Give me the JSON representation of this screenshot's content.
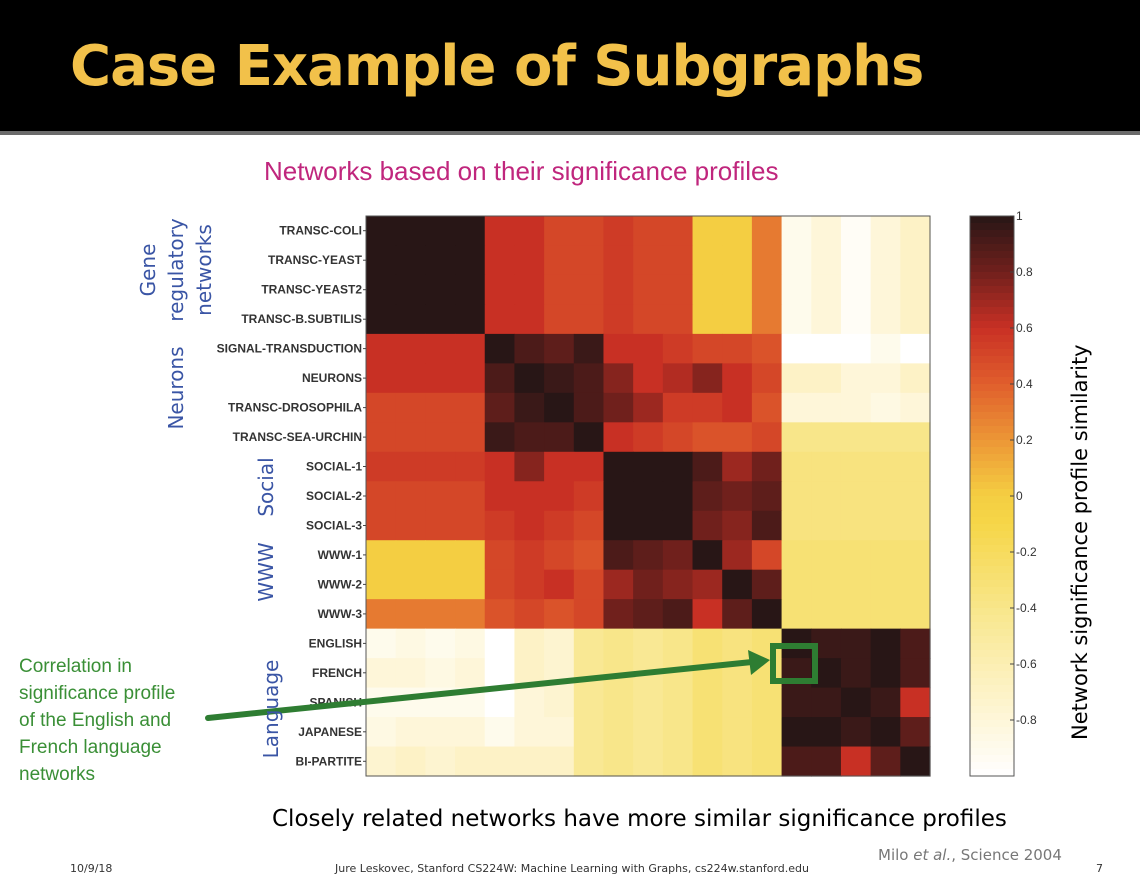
{
  "slide": {
    "title": "Case Example of Subgraphs",
    "subtitle": "Networks based on their significance profiles",
    "caption": "Closely related networks have more similar significance profiles",
    "citation_prefix": "Milo ",
    "citation_italic": "et al.",
    "citation_suffix": ", Science 2004",
    "footer_date": "10/9/18",
    "footer_center": "Jure Leskovec, Stanford CS224W: Machine Learning with Graphs, cs224w.stanford.edu",
    "page_number": "7"
  },
  "groups": {
    "gene_line1": "Gene",
    "gene_line2": "regulatory",
    "gene_line3": "networks",
    "neurons": "Neurons",
    "social": "Social",
    "www": "WWW",
    "language": "Language"
  },
  "callout": {
    "lines": [
      "Correlation in",
      "significance profile",
      "of the English and",
      "French language",
      "networks"
    ],
    "color": "#3a8f36"
  },
  "colors": {
    "title": "#f2c14a",
    "subtitle": "#c0267d",
    "group_labels": "#3a55a5",
    "highlight": "#2e7d32"
  },
  "chart_data": {
    "type": "heatmap",
    "title": "",
    "colorbar_label": "Network significance profile similarity",
    "colorbar_range": [
      -1,
      1
    ],
    "colorbar_ticks": [
      "1",
      "0.8",
      "0.6",
      "0.4",
      "0.2",
      "0",
      "-0.2",
      "-0.4",
      "-0.6",
      "-0.8"
    ],
    "colorbar_tick_values": [
      1,
      0.8,
      0.6,
      0.4,
      0.2,
      0,
      -0.2,
      -0.4,
      -0.6,
      -0.8
    ],
    "rows": [
      "TRANSC-COLI",
      "TRANSC-YEAST",
      "TRANSC-YEAST2",
      "TRANSC-B.SUBTILIS",
      "SIGNAL-TRANSDUCTION",
      "NEURONS",
      "TRANSC-DROSOPHILA",
      "TRANSC-SEA-URCHIN",
      "SOCIAL-1",
      "SOCIAL-2",
      "SOCIAL-3",
      "WWW-1",
      "WWW-2",
      "WWW-3",
      "ENGLISH",
      "FRENCH",
      "SPANISH",
      "JAPANESE",
      "BI-PARTITE"
    ],
    "highlighted_cell": {
      "row": "FRENCH",
      "column": "ENGLISH"
    },
    "values": [
      [
        1,
        1,
        1,
        1,
        0.6,
        0.6,
        0.5,
        0.5,
        0.55,
        0.5,
        0.5,
        0.0,
        0.0,
        0.3,
        -0.9,
        -0.8,
        -0.95,
        -0.8,
        -0.7
      ],
      [
        1,
        1,
        1,
        1,
        0.6,
        0.6,
        0.5,
        0.5,
        0.55,
        0.5,
        0.5,
        0.0,
        0.0,
        0.3,
        -0.9,
        -0.8,
        -0.95,
        -0.8,
        -0.7
      ],
      [
        1,
        1,
        1,
        1,
        0.6,
        0.6,
        0.5,
        0.5,
        0.55,
        0.5,
        0.5,
        0.0,
        0.0,
        0.3,
        -0.9,
        -0.8,
        -0.95,
        -0.8,
        -0.7
      ],
      [
        1,
        1,
        1,
        1,
        0.6,
        0.6,
        0.5,
        0.5,
        0.55,
        0.5,
        0.5,
        0.0,
        0.0,
        0.3,
        -0.9,
        -0.8,
        -0.95,
        -0.8,
        -0.7
      ],
      [
        0.6,
        0.6,
        0.6,
        0.6,
        1,
        0.9,
        0.85,
        0.95,
        0.6,
        0.6,
        0.55,
        0.5,
        0.5,
        0.45,
        -1,
        -1,
        -1,
        -0.9,
        -1
      ],
      [
        0.6,
        0.6,
        0.6,
        0.6,
        0.9,
        1,
        0.95,
        0.9,
        0.75,
        0.6,
        0.65,
        0.75,
        0.6,
        0.5,
        -0.7,
        -0.7,
        -0.8,
        -0.8,
        -0.7
      ],
      [
        0.5,
        0.5,
        0.5,
        0.5,
        0.85,
        0.95,
        1,
        0.9,
        0.8,
        0.7,
        0.55,
        0.55,
        0.6,
        0.45,
        -0.8,
        -0.8,
        -0.8,
        -0.85,
        -0.8
      ],
      [
        0.5,
        0.5,
        0.5,
        0.5,
        0.95,
        0.9,
        0.9,
        1,
        0.6,
        0.55,
        0.5,
        0.45,
        0.45,
        0.5,
        -0.4,
        -0.4,
        -0.4,
        -0.4,
        -0.4
      ],
      [
        0.55,
        0.55,
        0.55,
        0.55,
        0.6,
        0.75,
        0.6,
        0.6,
        1,
        1,
        1,
        0.9,
        0.7,
        0.8,
        -0.35,
        -0.35,
        -0.35,
        -0.35,
        -0.35
      ],
      [
        0.5,
        0.5,
        0.5,
        0.5,
        0.6,
        0.6,
        0.6,
        0.55,
        1,
        1,
        1,
        0.85,
        0.8,
        0.85,
        -0.35,
        -0.35,
        -0.35,
        -0.35,
        -0.35
      ],
      [
        0.5,
        0.5,
        0.5,
        0.5,
        0.55,
        0.6,
        0.55,
        0.5,
        1,
        1,
        1,
        0.8,
        0.75,
        0.9,
        -0.35,
        -0.35,
        -0.35,
        -0.35,
        -0.35
      ],
      [
        0.0,
        0.0,
        0.0,
        0.0,
        0.5,
        0.55,
        0.5,
        0.45,
        0.9,
        0.85,
        0.8,
        1,
        0.7,
        0.5,
        -0.3,
        -0.3,
        -0.3,
        -0.3,
        -0.3
      ],
      [
        0.0,
        0.0,
        0.0,
        0.0,
        0.5,
        0.55,
        0.6,
        0.5,
        0.7,
        0.8,
        0.75,
        0.7,
        1,
        0.85,
        -0.3,
        -0.3,
        -0.3,
        -0.3,
        -0.3
      ],
      [
        0.3,
        0.3,
        0.3,
        0.3,
        0.45,
        0.5,
        0.45,
        0.5,
        0.8,
        0.85,
        0.9,
        0.6,
        0.85,
        1,
        -0.3,
        -0.3,
        -0.3,
        -0.3,
        -0.3
      ],
      [
        -0.9,
        -0.85,
        -0.9,
        -0.85,
        -1,
        -0.7,
        -0.75,
        -0.45,
        -0.4,
        -0.45,
        -0.4,
        -0.3,
        -0.35,
        -0.3,
        1,
        0.95,
        0.95,
        1,
        0.9
      ],
      [
        -0.8,
        -0.8,
        -0.85,
        -0.8,
        -1,
        -0.7,
        -0.75,
        -0.45,
        -0.4,
        -0.45,
        -0.4,
        -0.3,
        -0.35,
        -0.3,
        0.95,
        1,
        0.95,
        1,
        0.9
      ],
      [
        -0.9,
        -0.9,
        -0.9,
        -0.9,
        -1,
        -0.8,
        -0.75,
        -0.45,
        -0.4,
        -0.45,
        -0.4,
        -0.3,
        -0.35,
        -0.3,
        0.95,
        0.95,
        1,
        0.95,
        0.6
      ],
      [
        -0.85,
        -0.8,
        -0.8,
        -0.8,
        -0.9,
        -0.8,
        -0.8,
        -0.45,
        -0.4,
        -0.45,
        -0.4,
        -0.3,
        -0.35,
        -0.3,
        1,
        1,
        0.95,
        1,
        0.85
      ],
      [
        -0.75,
        -0.7,
        -0.75,
        -0.7,
        -0.7,
        -0.7,
        -0.7,
        -0.45,
        -0.4,
        -0.45,
        -0.4,
        -0.3,
        -0.35,
        -0.3,
        0.9,
        0.9,
        0.6,
        0.85,
        1
      ]
    ]
  }
}
